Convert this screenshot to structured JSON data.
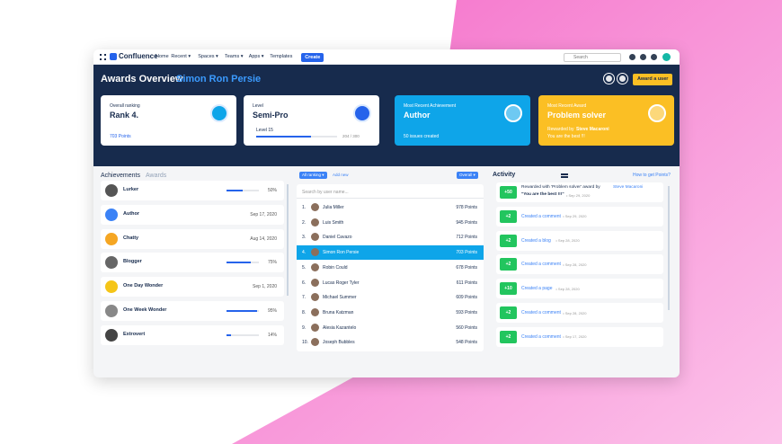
{
  "nav": {
    "brand": "Confluence",
    "items": [
      "Home",
      "Recent ▾",
      "Spaces ▾",
      "Teams ▾",
      "Apps ▾",
      "Templates"
    ],
    "create": "Create",
    "search": "Search"
  },
  "header": {
    "title": "Awards Overview",
    "user": "Simon Ron Persie",
    "button": "Award a user"
  },
  "cards": [
    {
      "label": "Overall ranking",
      "value": "Rank 4.",
      "footer": "703 Points"
    },
    {
      "label": "Level",
      "value": "Semi-Pro",
      "sub": "Level 15",
      "progress": {
        "value": 204,
        "max": 300,
        "label": "204 / 300"
      }
    },
    {
      "label": "Most Recent Achievement",
      "value": "Author",
      "footer": "50 issues created"
    },
    {
      "label": "Most Recent Award",
      "value": "Problem solver",
      "by_prefix": "Rewarded by",
      "by": "Steve Macaroni",
      "note": "You are the best !!!"
    }
  ],
  "achievements": {
    "tabs": [
      "Achievements",
      "Awards"
    ],
    "items": [
      {
        "name": "Lurker",
        "progress": 50,
        "progress_label": "50%",
        "color": "#555"
      },
      {
        "name": "Author",
        "date": "Sep 17, 2020",
        "color": "#3b82f6"
      },
      {
        "name": "Chatty",
        "date": "Aug 14, 2020",
        "color": "#f5a623"
      },
      {
        "name": "Blogger",
        "progress": 75,
        "progress_label": "75%",
        "color": "#666"
      },
      {
        "name": "One Day Wonder",
        "date": "Sep 1, 2020",
        "color": "#f5c518"
      },
      {
        "name": "One Week Wonder",
        "progress": 95,
        "progress_label": "95%",
        "color": "#888"
      },
      {
        "name": "Extrovert",
        "progress": 14,
        "progress_label": "14%",
        "color": "#444"
      }
    ]
  },
  "ranking": {
    "filter": "All ranking ▾",
    "add": "Add new",
    "sort": "Overall ▾",
    "search": "Search by user name...",
    "rows": [
      {
        "rank": "1.",
        "name": "Julia Miller",
        "points": "978 Points"
      },
      {
        "rank": "2.",
        "name": "Luis Smith",
        "points": "945 Points"
      },
      {
        "rank": "3.",
        "name": "Daniel Cavazo",
        "points": "712 Points"
      },
      {
        "rank": "4.",
        "name": "Simon Ron Persie",
        "points": "703 Points",
        "highlight": true
      },
      {
        "rank": "5.",
        "name": "Robin Could",
        "points": "678 Points"
      },
      {
        "rank": "6.",
        "name": "Lucas Roger Tyler",
        "points": "611 Points"
      },
      {
        "rank": "7.",
        "name": "Michael Summer",
        "points": "609 Points"
      },
      {
        "rank": "8.",
        "name": "Bruna Katzman",
        "points": "593 Points"
      },
      {
        "rank": "9.",
        "name": "Alesia Kazantelo",
        "points": "560 Points"
      },
      {
        "rank": "10.",
        "name": "Joseph Bubbles",
        "points": "548 Points"
      }
    ]
  },
  "activity": {
    "title": "Activity",
    "help": "How to get Points?",
    "items": [
      {
        "badge": "+50",
        "text": "Rewarded with 'Problem solver' award by",
        "by": "Steve Macaroni",
        "quote": "\"You are the best !!!\"",
        "date": "• Sep 29, 2020"
      },
      {
        "badge": "+2",
        "action": "Created a comment",
        "date": "• Sep 29, 2020"
      },
      {
        "badge": "+2",
        "action": "Created a blog",
        "date": "• Sep 28, 2020"
      },
      {
        "badge": "+2",
        "action": "Created a comment",
        "date": "• Sep 28, 2020"
      },
      {
        "badge": "+10",
        "action": "Created a page",
        "date": "• Sep 28, 2020"
      },
      {
        "badge": "+2",
        "action": "Created a comment",
        "date": "• Sep 28, 2020"
      },
      {
        "badge": "+2",
        "action": "Created a comment",
        "date": "• Sep 17, 2020"
      }
    ]
  }
}
